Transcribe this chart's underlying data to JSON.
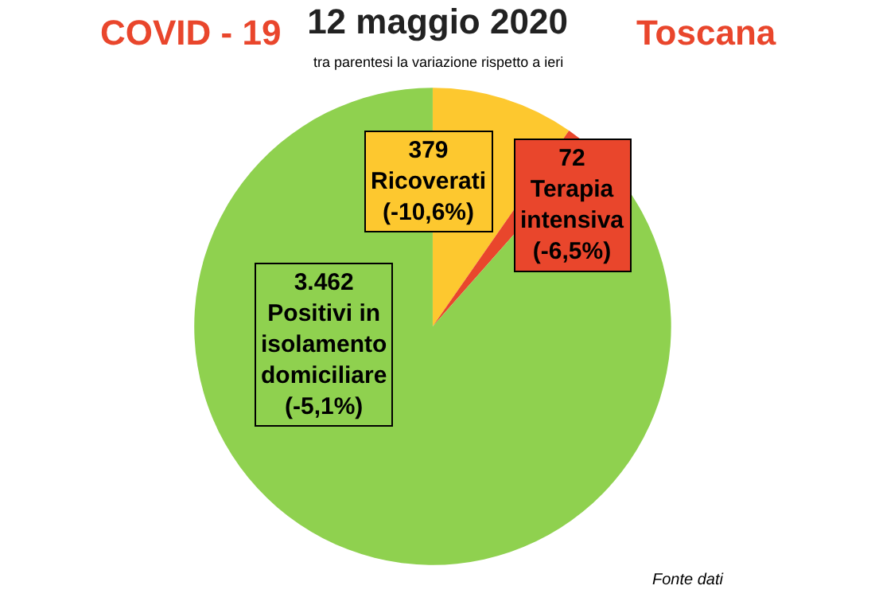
{
  "chart_data": {
    "type": "pie",
    "title": "12 maggio 2020",
    "subtitle": "tra parentesi la variazione rispetto a ieri",
    "categories": [
      "Ricoverati",
      "Terapia intensiva",
      "Positivi in isolamento domiciliare"
    ],
    "values": [
      379,
      72,
      3462
    ],
    "value_labels": [
      "379",
      "72",
      "3.462"
    ],
    "colors": [
      "#fdc82f",
      "#e9462c",
      "#8fd14f"
    ],
    "annotations": [
      "(-10,6%)",
      "(-6,5%)",
      "(-5,1%)",
      "COVID - 19",
      "Toscana",
      "Fonte dati"
    ],
    "legend": false
  }
}
